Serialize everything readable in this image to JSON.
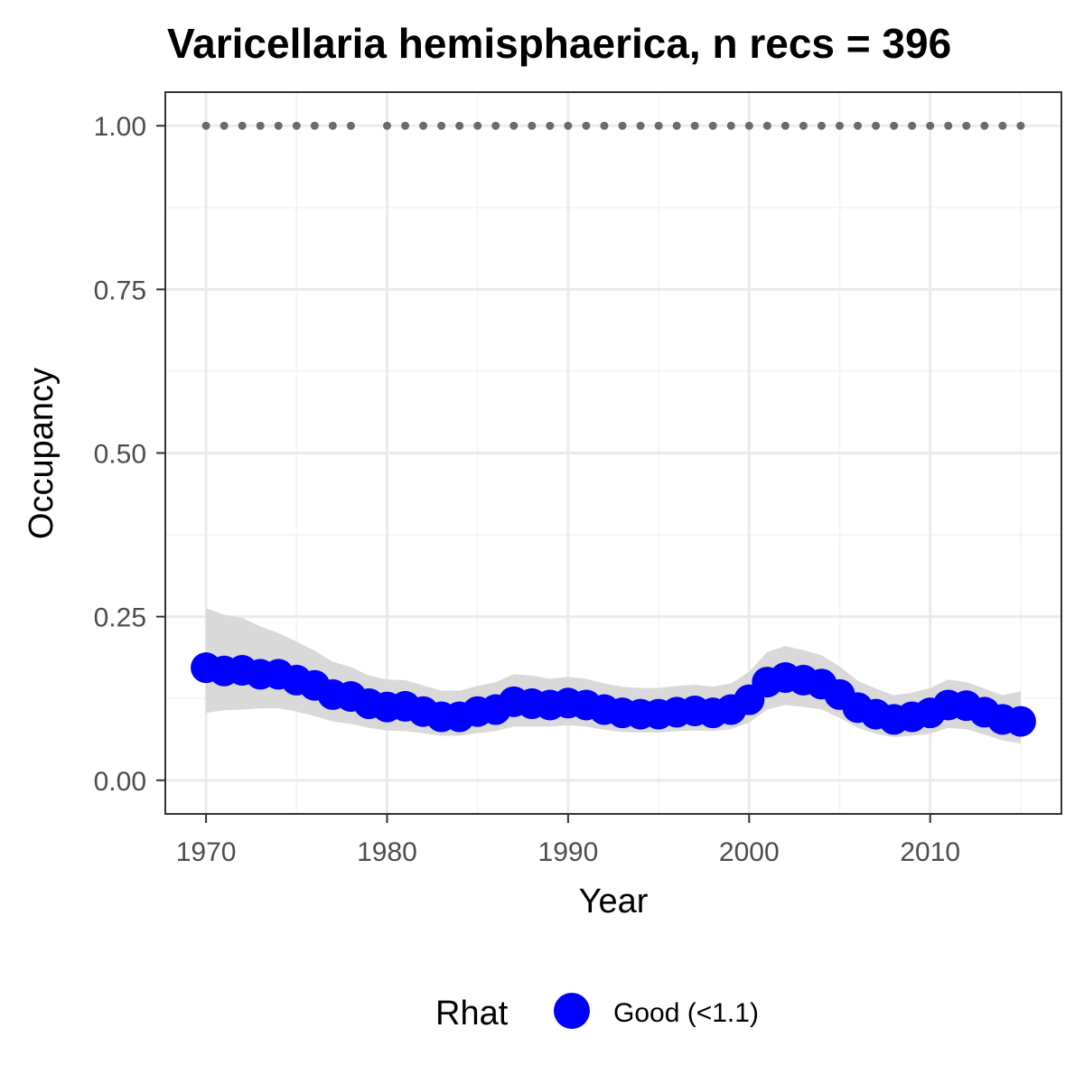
{
  "chart_data": {
    "type": "line",
    "title": "Varicellaria hemisphaerica, n recs = 396",
    "xlabel": "Year",
    "ylabel": "Occupancy",
    "xlim": [
      1967.8,
      2017.2
    ],
    "ylim": [
      -0.05,
      1.05
    ],
    "x_ticks": [
      1970,
      1980,
      1990,
      2000,
      2010
    ],
    "y_ticks": [
      0.0,
      0.25,
      0.5,
      0.75,
      1.0
    ],
    "y_tick_labels": [
      "0.00",
      "0.25",
      "0.50",
      "0.75",
      "1.00"
    ],
    "grid": true,
    "x": [
      1970,
      1971,
      1972,
      1973,
      1974,
      1975,
      1976,
      1977,
      1978,
      1979,
      1980,
      1981,
      1982,
      1983,
      1984,
      1985,
      1986,
      1987,
      1988,
      1989,
      1990,
      1991,
      1992,
      1993,
      1994,
      1995,
      1996,
      1997,
      1998,
      1999,
      2000,
      2001,
      2002,
      2003,
      2004,
      2005,
      2006,
      2007,
      2008,
      2009,
      2010,
      2011,
      2012,
      2013,
      2014,
      2015
    ],
    "series": [
      {
        "values": [
          0.172,
          0.167,
          0.168,
          0.162,
          0.162,
          0.153,
          0.145,
          0.131,
          0.128,
          0.117,
          0.112,
          0.113,
          0.105,
          0.097,
          0.097,
          0.105,
          0.108,
          0.12,
          0.117,
          0.115,
          0.118,
          0.115,
          0.108,
          0.103,
          0.101,
          0.101,
          0.104,
          0.106,
          0.103,
          0.108,
          0.123,
          0.15,
          0.157,
          0.153,
          0.147,
          0.131,
          0.111,
          0.101,
          0.093,
          0.097,
          0.103,
          0.115,
          0.114,
          0.104,
          0.093,
          0.09
        ],
        "ci_lower": [
          0.103,
          0.107,
          0.108,
          0.11,
          0.11,
          0.105,
          0.098,
          0.09,
          0.086,
          0.08,
          0.076,
          0.075,
          0.072,
          0.068,
          0.068,
          0.072,
          0.075,
          0.082,
          0.082,
          0.082,
          0.084,
          0.082,
          0.077,
          0.074,
          0.073,
          0.073,
          0.075,
          0.076,
          0.075,
          0.078,
          0.088,
          0.108,
          0.115,
          0.112,
          0.108,
          0.095,
          0.08,
          0.071,
          0.066,
          0.068,
          0.071,
          0.08,
          0.078,
          0.07,
          0.061,
          0.056
        ],
        "ci_upper": [
          0.263,
          0.253,
          0.248,
          0.235,
          0.225,
          0.212,
          0.198,
          0.181,
          0.173,
          0.16,
          0.154,
          0.153,
          0.145,
          0.137,
          0.137,
          0.144,
          0.15,
          0.162,
          0.16,
          0.155,
          0.158,
          0.155,
          0.148,
          0.143,
          0.141,
          0.141,
          0.144,
          0.146,
          0.143,
          0.148,
          0.166,
          0.196,
          0.205,
          0.199,
          0.191,
          0.174,
          0.152,
          0.14,
          0.13,
          0.134,
          0.141,
          0.154,
          0.15,
          0.14,
          0.13,
          0.136
        ]
      }
    ],
    "rug_years": [
      1970,
      1971,
      1972,
      1973,
      1974,
      1975,
      1976,
      1977,
      1978,
      1980,
      1981,
      1982,
      1983,
      1984,
      1985,
      1986,
      1987,
      1988,
      1989,
      1990,
      1991,
      1992,
      1993,
      1994,
      1995,
      1996,
      1997,
      1998,
      1999,
      2000,
      2001,
      2002,
      2003,
      2004,
      2005,
      2006,
      2007,
      2008,
      2009,
      2010,
      2011,
      2012,
      2013,
      2014,
      2015
    ],
    "rug_y": 1.0,
    "legend": {
      "title": "Rhat",
      "entries": [
        {
          "label": "Good (<1.1)",
          "color": "#0000ff"
        }
      ],
      "placement": "bottom"
    },
    "colors": {
      "points": "#0000ff",
      "ribbon": "#d9d9d9",
      "rug": "#6b6b6b",
      "grid_major": "#ebebeb",
      "grid_minor": "#f5f5f5",
      "panel_border": "#333333"
    }
  }
}
